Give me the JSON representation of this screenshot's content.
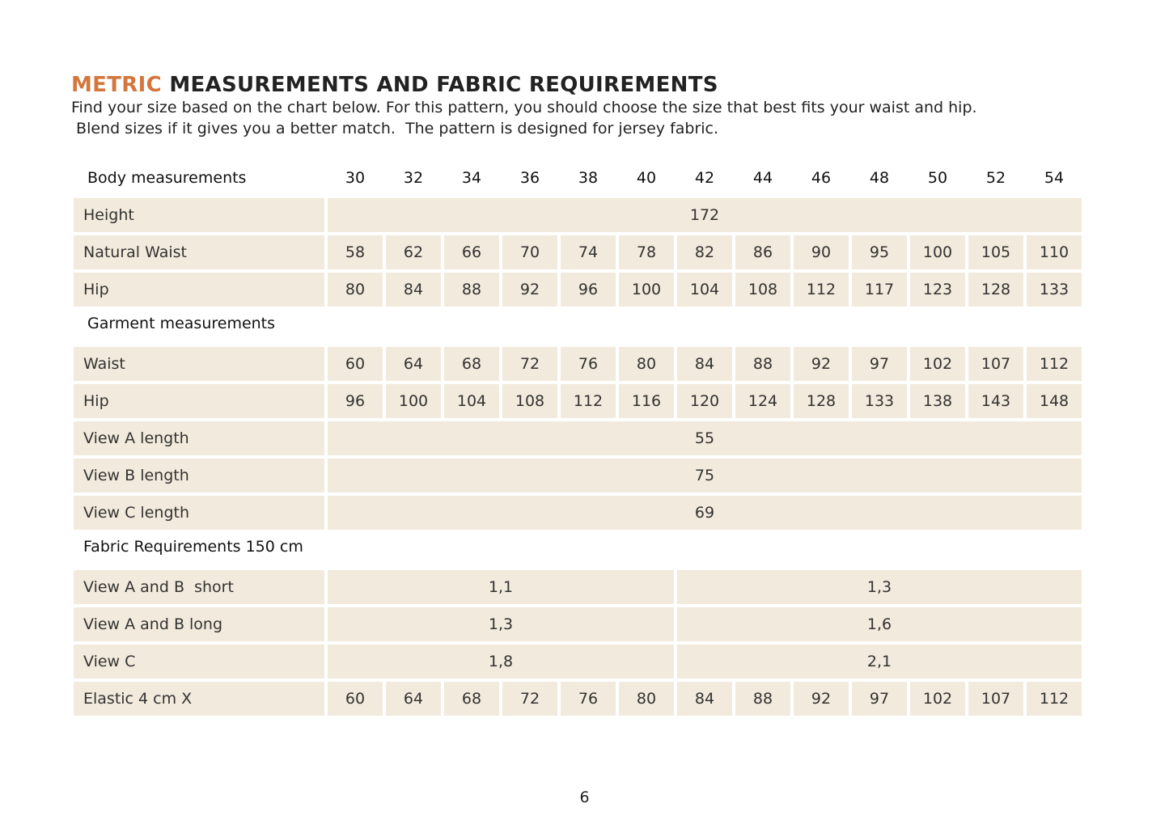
{
  "header": {
    "title_highlight": "METRIC",
    "title": "MEASUREMENTS AND FABRIC REQUIREMENTS",
    "intro": [
      "Find your size based on the chart below. For this pattern, you should choose the size that best fits your waist and hip.",
      " Blend sizes if it gives you a better match.  The pattern is designed for jersey fabric."
    ]
  },
  "table": {
    "sizes_label": "Body measurements",
    "sizes": [
      "30",
      "32",
      "34",
      "36",
      "38",
      "40",
      "42",
      "44",
      "46",
      "48",
      "50",
      "52",
      "54"
    ],
    "sections": [
      {
        "rows": [
          {
            "label": "Height",
            "cells": [
              "172"
            ]
          },
          {
            "label": "Natural Waist",
            "cells": [
              "58",
              "62",
              "66",
              "70",
              "74",
              "78",
              "82",
              "86",
              "90",
              "95",
              "100",
              "105",
              "110"
            ]
          },
          {
            "label": "Hip",
            "cells": [
              "80",
              "84",
              "88",
              "92",
              "96",
              "100",
              "104",
              "108",
              "112",
              "117",
              "123",
              "128",
              "133"
            ]
          }
        ]
      },
      {
        "heading": "Garment measurements",
        "rows": [
          {
            "label": "Waist",
            "cells": [
              "60",
              "64",
              "68",
              "72",
              "76",
              "80",
              "84",
              "88",
              "92",
              "97",
              "102",
              "107",
              "112"
            ]
          },
          {
            "label": "Hip",
            "cells": [
              "96",
              "100",
              "104",
              "108",
              "112",
              "116",
              "120",
              "124",
              "128",
              "133",
              "138",
              "143",
              "148"
            ]
          },
          {
            "label": "View A length",
            "cells": [
              "55"
            ]
          },
          {
            "label": "View B length",
            "cells": [
              "75"
            ]
          },
          {
            "label": "View C length",
            "cells": [
              "69"
            ]
          }
        ]
      },
      {
        "heading": "Fabric Requirements 150 cm",
        "rows": [
          {
            "label": "View A and B  short",
            "cells": [
              "1,1",
              "1,3"
            ]
          },
          {
            "label": "View A and B long",
            "cells": [
              "1,3",
              "1,6"
            ]
          },
          {
            "label": "View C",
            "cells": [
              "1,8",
              "2,1"
            ]
          },
          {
            "label": "Elastic 4 cm X",
            "cells": [
              "60",
              "64",
              "68",
              "72",
              "76",
              "80",
              "84",
              "88",
              "92",
              "97",
              "102",
              "107",
              "112"
            ]
          }
        ]
      }
    ]
  },
  "page_number": "6"
}
